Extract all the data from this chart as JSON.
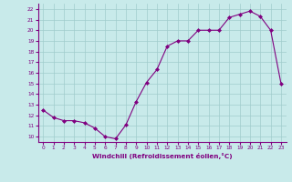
{
  "x": [
    0,
    1,
    2,
    3,
    4,
    5,
    6,
    7,
    8,
    9,
    10,
    11,
    12,
    13,
    14,
    15,
    16,
    17,
    18,
    19,
    20,
    21,
    22,
    23
  ],
  "y": [
    12.5,
    11.8,
    11.5,
    11.5,
    11.3,
    10.8,
    10.0,
    9.8,
    11.1,
    13.3,
    15.1,
    16.3,
    18.5,
    19.0,
    19.0,
    20.0,
    20.0,
    20.0,
    21.2,
    21.5,
    21.8,
    21.3,
    20.0,
    15.0
  ],
  "xlim": [
    -0.5,
    23.5
  ],
  "ylim": [
    9.5,
    22.5
  ],
  "yticks": [
    10,
    11,
    12,
    13,
    14,
    15,
    16,
    17,
    18,
    19,
    20,
    21,
    22
  ],
  "xticks": [
    0,
    1,
    2,
    3,
    4,
    5,
    6,
    7,
    8,
    9,
    10,
    11,
    12,
    13,
    14,
    15,
    16,
    17,
    18,
    19,
    20,
    21,
    22,
    23
  ],
  "xlabel": "Windchill (Refroidissement éolien,°C)",
  "line_color": "#800080",
  "marker_color": "#800080",
  "bg_color": "#c8eaea",
  "grid_color": "#a0cccc",
  "axis_label_color": "#800080",
  "tick_color": "#800080",
  "spine_color": "#800080"
}
